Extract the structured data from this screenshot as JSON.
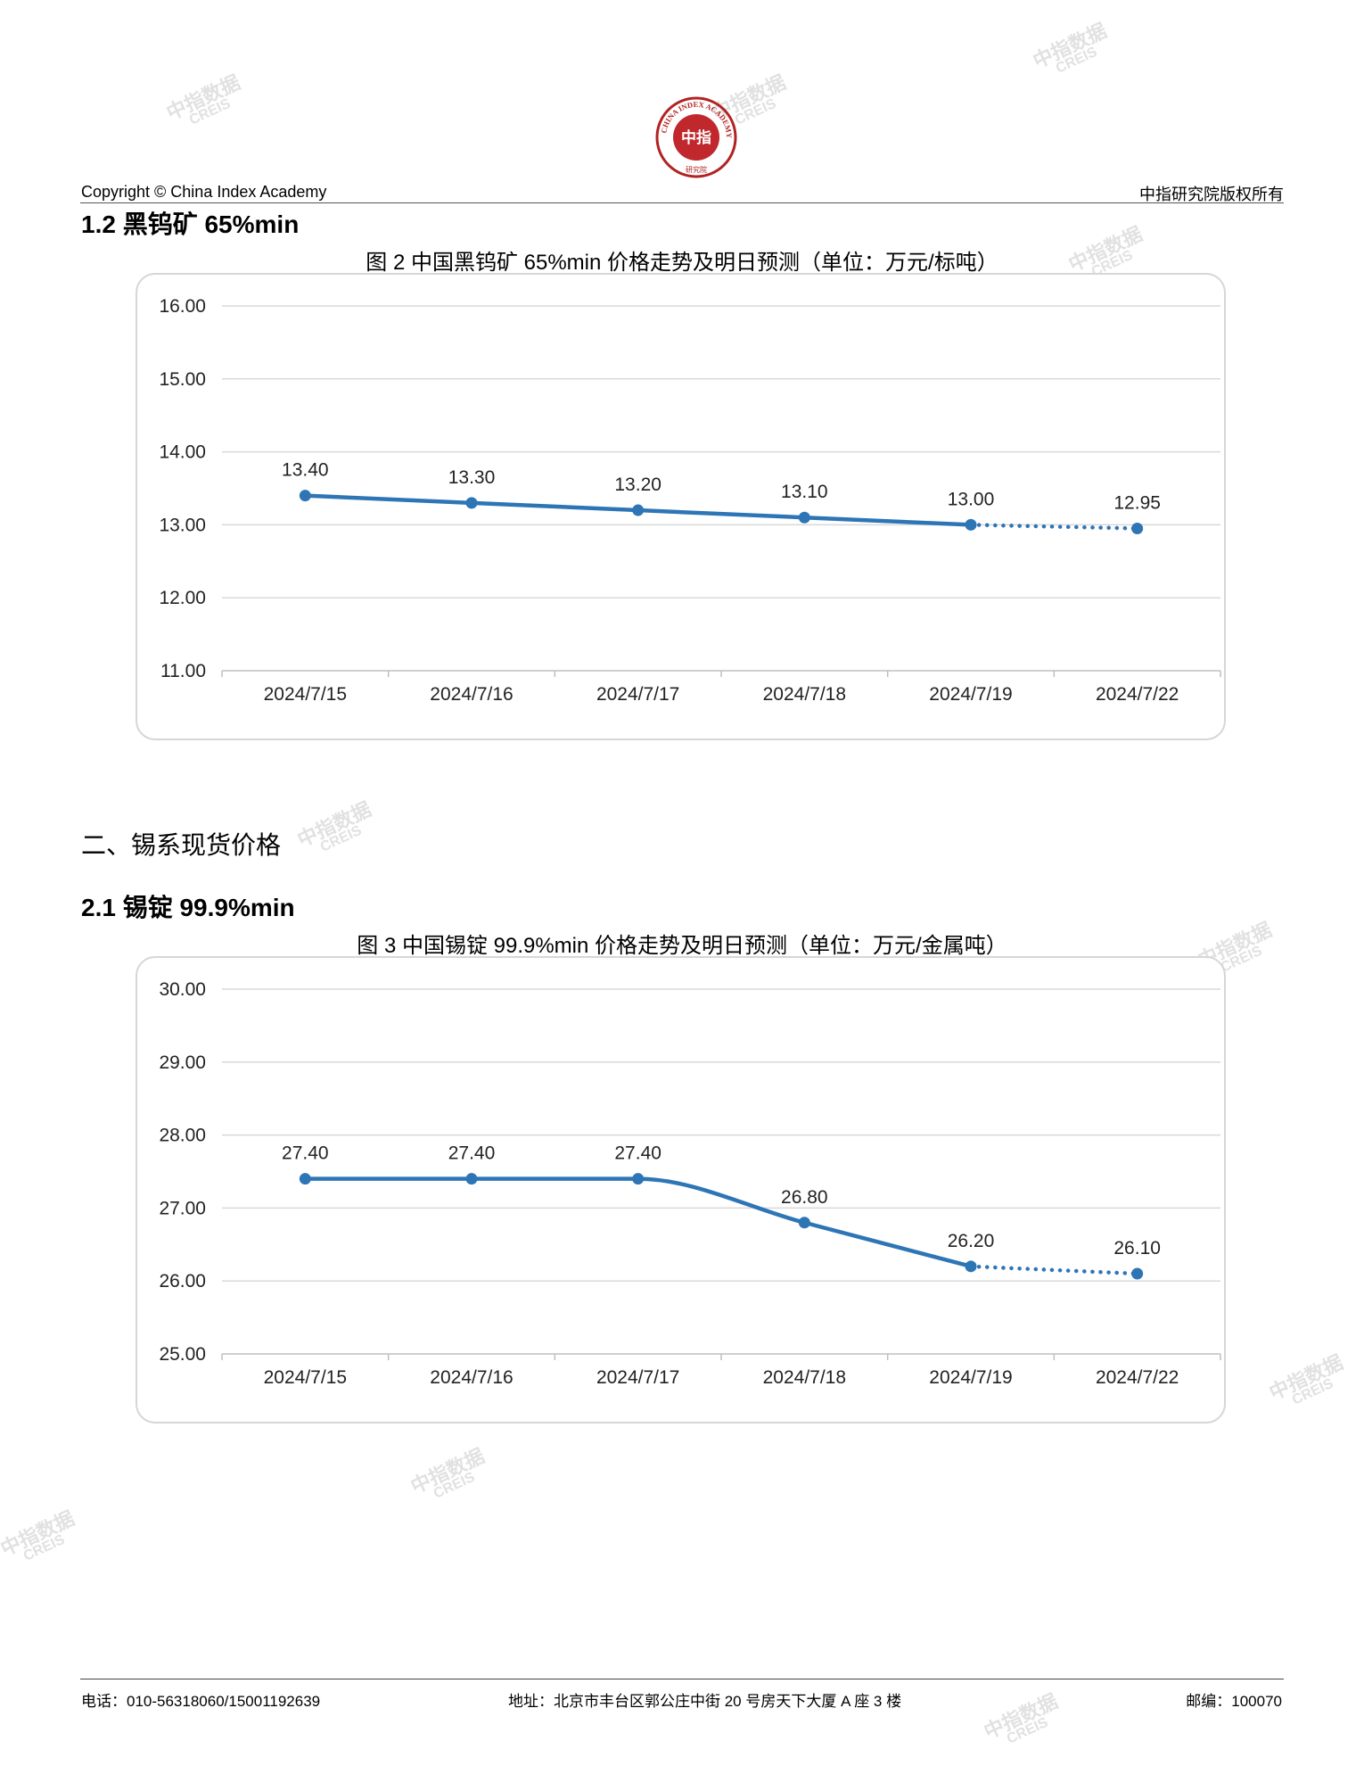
{
  "header": {
    "copyright": "Copyright © China Index Academy",
    "rights": "中指研究院版权所有",
    "logo_ring_text": "CHINA INDEX ACADEMY",
    "logo_center": "中指",
    "logo_bottom": "研究院"
  },
  "sections": {
    "s1_2": "1.2 黑钨矿 65%min",
    "s2": "二、锡系现货价格",
    "s2_1": "2.1 锡锭 99.9%min"
  },
  "watermark": {
    "cn": "中指数据",
    "en": "CREIS"
  },
  "charts": [
    {
      "title": "图 2 中国黑钨矿 65%min 价格走势及明日预测（单位：万元/标吨）"
    },
    {
      "title": "图 3 中国锡锭 99.9%min 价格走势及明日预测（单位：万元/金属吨）"
    }
  ],
  "chart_data": [
    {
      "type": "line",
      "title": "图 2 中国黑钨矿 65%min 价格走势及明日预测（单位：万元/标吨）",
      "categories": [
        "2024/7/15",
        "2024/7/16",
        "2024/7/17",
        "2024/7/18",
        "2024/7/19",
        "2024/7/22"
      ],
      "values": [
        13.4,
        13.3,
        13.2,
        13.1,
        13.0,
        12.95
      ],
      "data_labels": [
        "13.40",
        "13.30",
        "13.20",
        "13.10",
        "13.00",
        "12.95"
      ],
      "forecast_from_index": 4,
      "ylim": [
        11,
        16
      ],
      "yticks": [
        "11.00",
        "12.00",
        "13.00",
        "14.00",
        "15.00",
        "16.00"
      ],
      "grid": true,
      "smooth": false,
      "color": "#2e75b6"
    },
    {
      "type": "line",
      "title": "图 3 中国锡锭 99.9%min 价格走势及明日预测（单位：万元/金属吨）",
      "categories": [
        "2024/7/15",
        "2024/7/16",
        "2024/7/17",
        "2024/7/18",
        "2024/7/19",
        "2024/7/22"
      ],
      "values": [
        27.4,
        27.4,
        27.4,
        26.8,
        26.2,
        26.1
      ],
      "data_labels": [
        "27.40",
        "27.40",
        "27.40",
        "26.80",
        "26.20",
        "26.10"
      ],
      "forecast_from_index": 4,
      "ylim": [
        25,
        30
      ],
      "yticks": [
        "25.00",
        "26.00",
        "27.00",
        "28.00",
        "29.00",
        "30.00"
      ],
      "grid": true,
      "smooth": true,
      "color": "#2e75b6"
    }
  ],
  "footer": {
    "phone": "电话：010-56318060/15001192639",
    "address": "地址：北京市丰台区郭公庄中街 20 号房天下大厦 A 座 3 楼",
    "postcode": "邮编：100070"
  }
}
